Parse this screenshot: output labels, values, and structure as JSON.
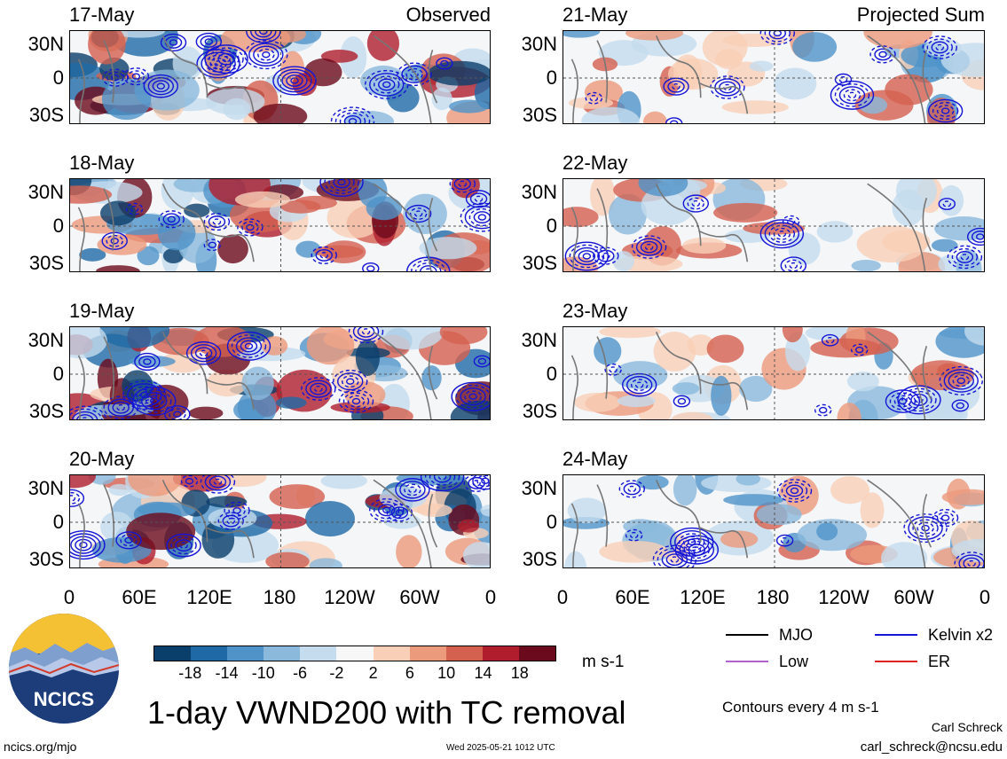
{
  "panels_left": [
    {
      "date": "17-May",
      "tag": "Observed"
    },
    {
      "date": "18-May",
      "tag": ""
    },
    {
      "date": "19-May",
      "tag": ""
    },
    {
      "date": "20-May",
      "tag": ""
    }
  ],
  "panels_right": [
    {
      "date": "21-May",
      "tag": "Projected Sum"
    },
    {
      "date": "22-May",
      "tag": ""
    },
    {
      "date": "23-May",
      "tag": ""
    },
    {
      "date": "24-May",
      "tag": ""
    }
  ],
  "y_ticks": [
    "30N",
    "0",
    "30S"
  ],
  "x_ticks": [
    "0",
    "60E",
    "120E",
    "180",
    "120W",
    "60W",
    "0"
  ],
  "colorbar": {
    "labels": [
      "-18",
      "-14",
      "-10",
      "-6",
      "-2",
      "2",
      "6",
      "10",
      "14",
      "18"
    ],
    "colors": [
      "#0b3f6b",
      "#1f6aa6",
      "#4f93c9",
      "#8ab9dc",
      "#c4dced",
      "#f7f7f7",
      "#f9cfb7",
      "#ec9a7c",
      "#d4604f",
      "#b01e2d",
      "#6b0a1c"
    ],
    "unit": "m s-1"
  },
  "legend": {
    "items": [
      {
        "label": "MJO",
        "color": "#000000"
      },
      {
        "label": "Kelvin x2",
        "color": "#1515d6"
      },
      {
        "label": "Low",
        "color": "#b060d0"
      },
      {
        "label": "ER",
        "color": "#e02020"
      }
    ],
    "contour_note": "Contours every 4 m s-1"
  },
  "title": "1-day VWND200 with TC removal",
  "logo_text": "NCICS",
  "footer": {
    "url": "ncics.org/mjo",
    "timestamp": "Wed 2025-05-21 1012 UTC",
    "author": "Carl Schreck",
    "email": "carl_schreck@ncsu.edu"
  },
  "chart_data": {
    "type": "heatmap",
    "variable": "1-day VWND200 with TC removal",
    "unit": "m s-1",
    "x_axis": [
      "0",
      "60E",
      "120E",
      "180",
      "120W",
      "60W",
      "0"
    ],
    "y_axis": [
      "30N",
      "0",
      "30S"
    ],
    "color_levels": [
      -18,
      -14,
      -10,
      -6,
      -2,
      2,
      6,
      10,
      14,
      18
    ],
    "observed": [
      "17-May",
      "18-May",
      "19-May",
      "20-May"
    ],
    "projected_sum": [
      "21-May",
      "22-May",
      "23-May",
      "24-May"
    ],
    "contour_interval": 4
  }
}
